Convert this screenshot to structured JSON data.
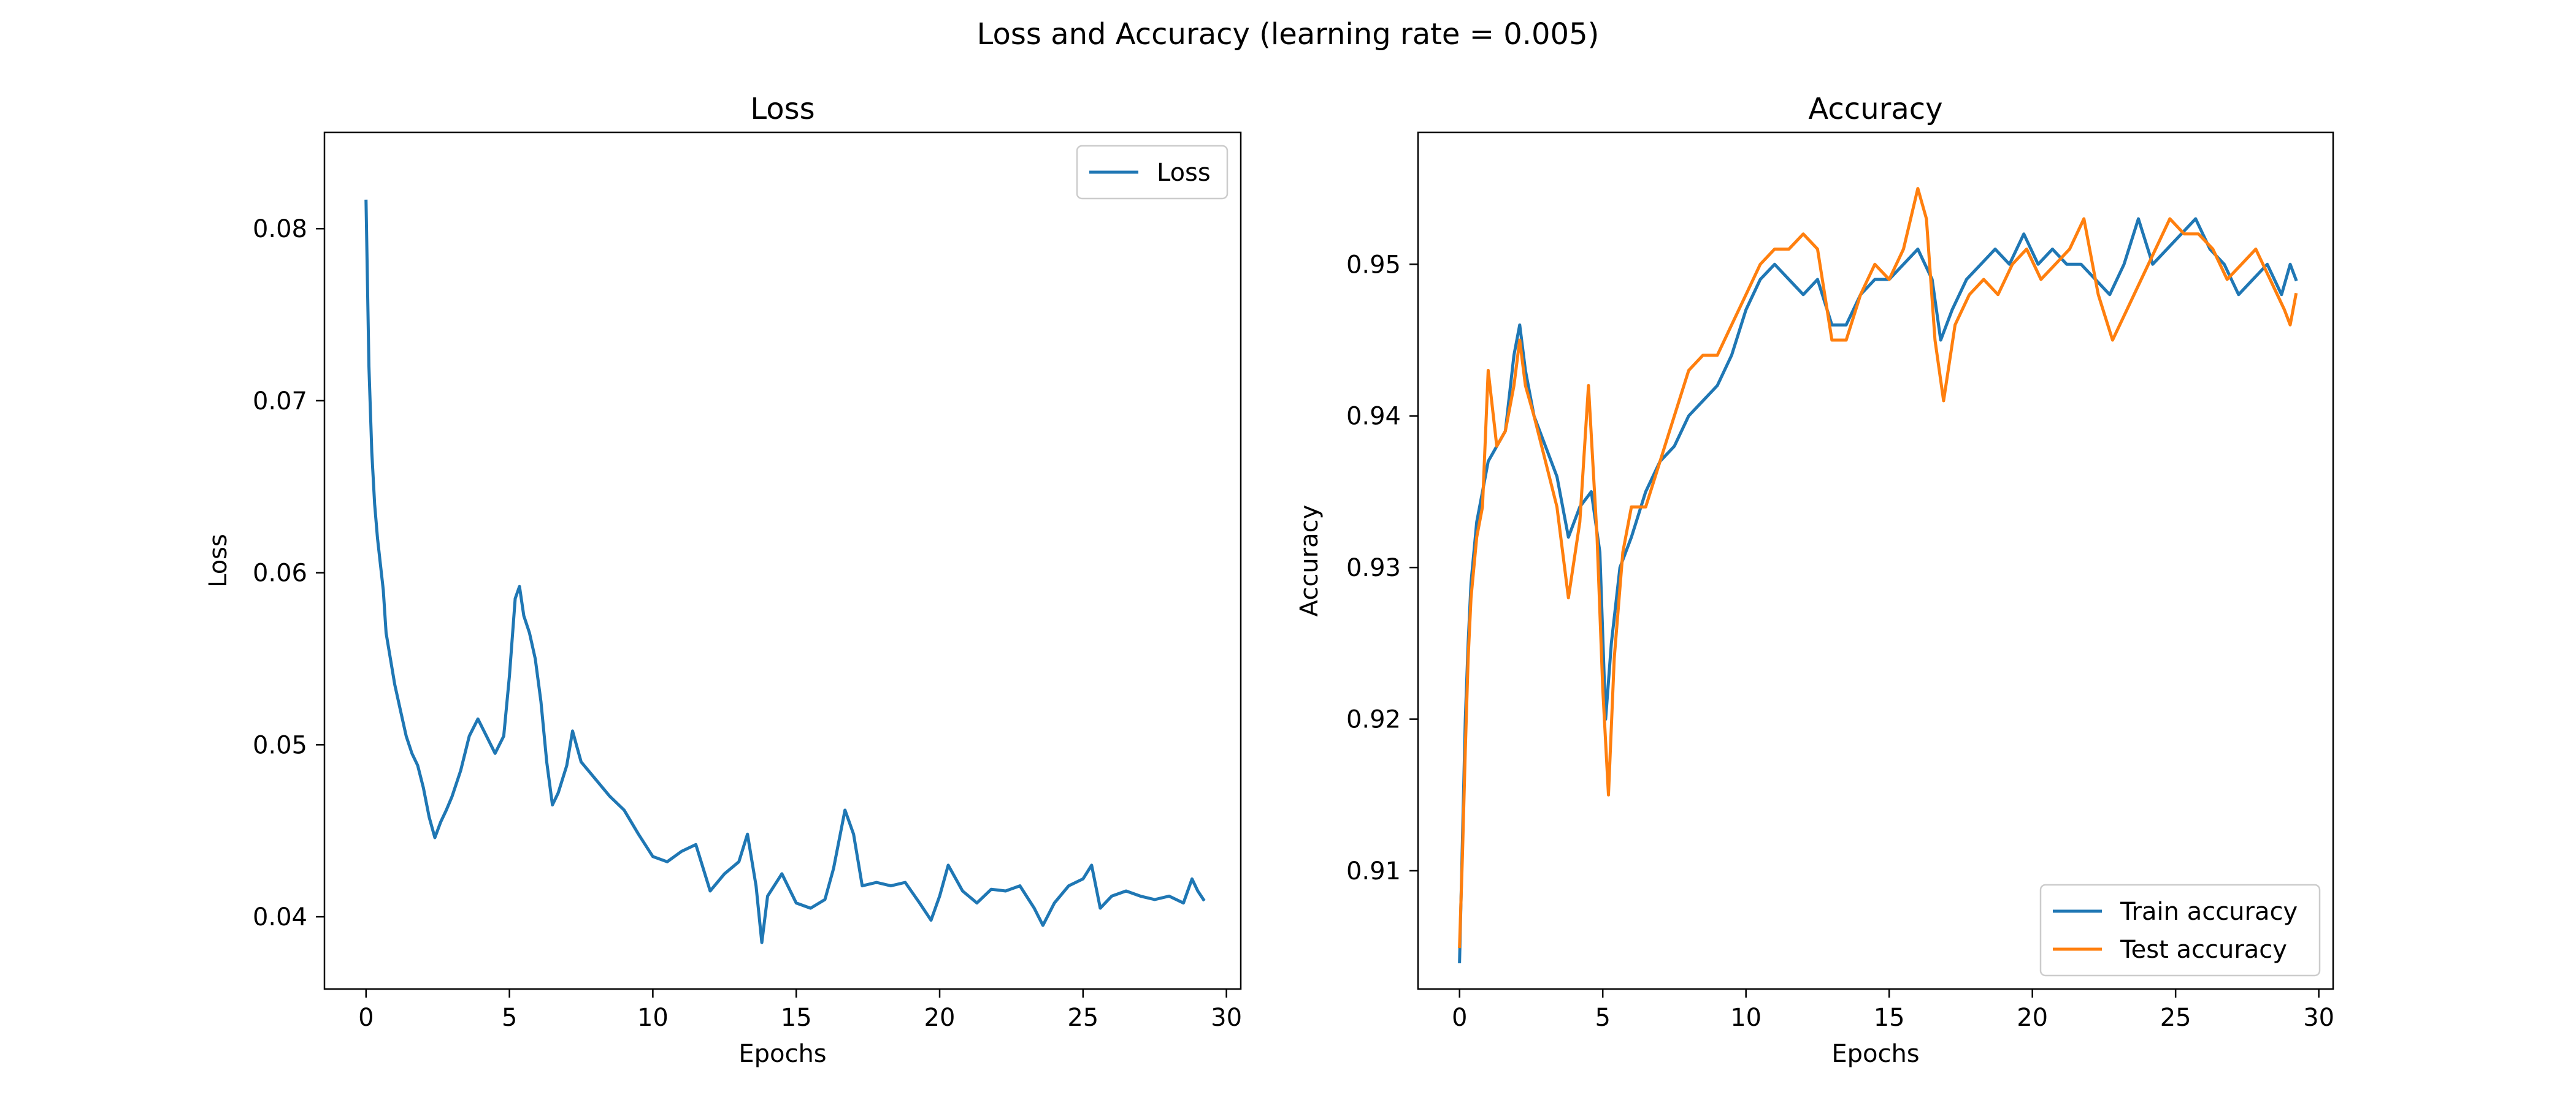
{
  "suptitle": "Loss and Accuracy (learning rate = 0.005)",
  "chart_data": [
    {
      "type": "line",
      "title": "Loss",
      "xlabel": "Epochs",
      "ylabel": "Loss",
      "xlim": [
        -1.45,
        30.5
      ],
      "ylim": [
        0.0358,
        0.0856
      ],
      "xticks": [
        0,
        5,
        10,
        15,
        20,
        25,
        30
      ],
      "yticks": [
        0.04,
        0.05,
        0.06,
        0.07,
        0.08
      ],
      "legend": "upper-right",
      "series": [
        {
          "name": "Loss",
          "color": "#1f77b4",
          "points": [
            [
              0.0,
              0.0816
            ],
            [
              0.1,
              0.072
            ],
            [
              0.2,
              0.067
            ],
            [
              0.3,
              0.064
            ],
            [
              0.4,
              0.062
            ],
            [
              0.5,
              0.0605
            ],
            [
              0.6,
              0.059
            ],
            [
              0.7,
              0.0565
            ],
            [
              0.8,
              0.0555
            ],
            [
              1.0,
              0.0535
            ],
            [
              1.2,
              0.052
            ],
            [
              1.4,
              0.0505
            ],
            [
              1.6,
              0.0495
            ],
            [
              1.8,
              0.0488
            ],
            [
              2.0,
              0.0475
            ],
            [
              2.2,
              0.0458
            ],
            [
              2.4,
              0.0446
            ],
            [
              2.6,
              0.0455
            ],
            [
              2.8,
              0.0462
            ],
            [
              3.0,
              0.047
            ],
            [
              3.3,
              0.0485
            ],
            [
              3.6,
              0.0505
            ],
            [
              3.9,
              0.0515
            ],
            [
              4.2,
              0.0505
            ],
            [
              4.5,
              0.0495
            ],
            [
              4.8,
              0.0505
            ],
            [
              5.0,
              0.054
            ],
            [
              5.2,
              0.0585
            ],
            [
              5.35,
              0.0592
            ],
            [
              5.5,
              0.0575
            ],
            [
              5.7,
              0.0565
            ],
            [
              5.9,
              0.055
            ],
            [
              6.1,
              0.0525
            ],
            [
              6.3,
              0.049
            ],
            [
              6.5,
              0.0465
            ],
            [
              6.7,
              0.0472
            ],
            [
              7.0,
              0.0488
            ],
            [
              7.2,
              0.0508
            ],
            [
              7.5,
              0.049
            ],
            [
              8.0,
              0.048
            ],
            [
              8.5,
              0.047
            ],
            [
              9.0,
              0.0462
            ],
            [
              9.5,
              0.0448
            ],
            [
              10.0,
              0.0435
            ],
            [
              10.5,
              0.0432
            ],
            [
              11.0,
              0.0438
            ],
            [
              11.5,
              0.0442
            ],
            [
              12.0,
              0.0415
            ],
            [
              12.5,
              0.0425
            ],
            [
              13.0,
              0.0432
            ],
            [
              13.3,
              0.0448
            ],
            [
              13.6,
              0.0418
            ],
            [
              13.8,
              0.0385
            ],
            [
              14.0,
              0.0412
            ],
            [
              14.5,
              0.0425
            ],
            [
              15.0,
              0.0408
            ],
            [
              15.5,
              0.0405
            ],
            [
              16.0,
              0.041
            ],
            [
              16.3,
              0.0428
            ],
            [
              16.7,
              0.0462
            ],
            [
              17.0,
              0.0448
            ],
            [
              17.3,
              0.0418
            ],
            [
              17.8,
              0.042
            ],
            [
              18.3,
              0.0418
            ],
            [
              18.8,
              0.042
            ],
            [
              19.3,
              0.0408
            ],
            [
              19.7,
              0.0398
            ],
            [
              20.0,
              0.0412
            ],
            [
              20.3,
              0.043
            ],
            [
              20.8,
              0.0415
            ],
            [
              21.3,
              0.0408
            ],
            [
              21.8,
              0.0416
            ],
            [
              22.3,
              0.0415
            ],
            [
              22.8,
              0.0418
            ],
            [
              23.3,
              0.0405
            ],
            [
              23.6,
              0.0395
            ],
            [
              24.0,
              0.0408
            ],
            [
              24.5,
              0.0418
            ],
            [
              25.0,
              0.0422
            ],
            [
              25.3,
              0.043
            ],
            [
              25.6,
              0.0405
            ],
            [
              26.0,
              0.0412
            ],
            [
              26.5,
              0.0415
            ],
            [
              27.0,
              0.0412
            ],
            [
              27.5,
              0.041
            ],
            [
              28.0,
              0.0412
            ],
            [
              28.5,
              0.0408
            ],
            [
              28.8,
              0.0422
            ],
            [
              29.0,
              0.0415
            ],
            [
              29.2,
              0.041
            ]
          ]
        }
      ]
    },
    {
      "type": "line",
      "title": "Accuracy",
      "xlabel": "Epochs",
      "ylabel": "Accuracy",
      "xlim": [
        -1.45,
        30.5
      ],
      "ylim": [
        0.9022,
        0.9587
      ],
      "xticks": [
        0,
        5,
        10,
        15,
        20,
        25,
        30
      ],
      "yticks": [
        0.91,
        0.92,
        0.93,
        0.94,
        0.95
      ],
      "legend": "lower-right",
      "series": [
        {
          "name": "Train accuracy",
          "color": "#1f77b4",
          "points": [
            [
              0.0,
              0.904
            ],
            [
              0.1,
              0.912
            ],
            [
              0.2,
              0.92
            ],
            [
              0.3,
              0.925
            ],
            [
              0.4,
              0.929
            ],
            [
              0.6,
              0.933
            ],
            [
              0.8,
              0.935
            ],
            [
              1.0,
              0.937
            ],
            [
              1.3,
              0.938
            ],
            [
              1.6,
              0.939
            ],
            [
              1.9,
              0.944
            ],
            [
              2.1,
              0.946
            ],
            [
              2.3,
              0.943
            ],
            [
              2.6,
              0.94
            ],
            [
              3.0,
              0.938
            ],
            [
              3.4,
              0.936
            ],
            [
              3.8,
              0.932
            ],
            [
              4.2,
              0.934
            ],
            [
              4.6,
              0.935
            ],
            [
              4.9,
              0.931
            ],
            [
              5.1,
              0.92
            ],
            [
              5.3,
              0.925
            ],
            [
              5.6,
              0.93
            ],
            [
              6.0,
              0.932
            ],
            [
              6.5,
              0.935
            ],
            [
              7.0,
              0.937
            ],
            [
              7.5,
              0.938
            ],
            [
              8.0,
              0.94
            ],
            [
              8.5,
              0.941
            ],
            [
              9.0,
              0.942
            ],
            [
              9.5,
              0.944
            ],
            [
              10.0,
              0.947
            ],
            [
              10.5,
              0.949
            ],
            [
              11.0,
              0.95
            ],
            [
              11.5,
              0.949
            ],
            [
              12.0,
              0.948
            ],
            [
              12.5,
              0.949
            ],
            [
              13.0,
              0.946
            ],
            [
              13.5,
              0.946
            ],
            [
              14.0,
              0.948
            ],
            [
              14.5,
              0.949
            ],
            [
              15.0,
              0.949
            ],
            [
              15.5,
              0.95
            ],
            [
              16.0,
              0.951
            ],
            [
              16.5,
              0.949
            ],
            [
              16.8,
              0.945
            ],
            [
              17.2,
              0.947
            ],
            [
              17.7,
              0.949
            ],
            [
              18.2,
              0.95
            ],
            [
              18.7,
              0.951
            ],
            [
              19.2,
              0.95
            ],
            [
              19.7,
              0.952
            ],
            [
              20.2,
              0.95
            ],
            [
              20.7,
              0.951
            ],
            [
              21.2,
              0.95
            ],
            [
              21.7,
              0.95
            ],
            [
              22.2,
              0.949
            ],
            [
              22.7,
              0.948
            ],
            [
              23.2,
              0.95
            ],
            [
              23.7,
              0.953
            ],
            [
              24.2,
              0.95
            ],
            [
              24.7,
              0.951
            ],
            [
              25.2,
              0.952
            ],
            [
              25.7,
              0.953
            ],
            [
              26.2,
              0.951
            ],
            [
              26.7,
              0.95
            ],
            [
              27.2,
              0.948
            ],
            [
              27.7,
              0.949
            ],
            [
              28.2,
              0.95
            ],
            [
              28.7,
              0.948
            ],
            [
              29.0,
              0.95
            ],
            [
              29.2,
              0.949
            ]
          ]
        },
        {
          "name": "Test accuracy",
          "color": "#ff7f0e",
          "points": [
            [
              0.0,
              0.905
            ],
            [
              0.1,
              0.911
            ],
            [
              0.2,
              0.918
            ],
            [
              0.3,
              0.924
            ],
            [
              0.4,
              0.928
            ],
            [
              0.6,
              0.932
            ],
            [
              0.8,
              0.934
            ],
            [
              1.0,
              0.943
            ],
            [
              1.3,
              0.938
            ],
            [
              1.6,
              0.939
            ],
            [
              1.9,
              0.942
            ],
            [
              2.1,
              0.945
            ],
            [
              2.3,
              0.942
            ],
            [
              2.6,
              0.94
            ],
            [
              3.0,
              0.937
            ],
            [
              3.4,
              0.934
            ],
            [
              3.8,
              0.928
            ],
            [
              4.2,
              0.933
            ],
            [
              4.5,
              0.942
            ],
            [
              4.8,
              0.932
            ],
            [
              5.0,
              0.922
            ],
            [
              5.2,
              0.915
            ],
            [
              5.4,
              0.924
            ],
            [
              5.7,
              0.931
            ],
            [
              6.0,
              0.934
            ],
            [
              6.5,
              0.934
            ],
            [
              7.0,
              0.937
            ],
            [
              7.5,
              0.94
            ],
            [
              8.0,
              0.943
            ],
            [
              8.5,
              0.944
            ],
            [
              9.0,
              0.944
            ],
            [
              9.5,
              0.946
            ],
            [
              10.0,
              0.948
            ],
            [
              10.5,
              0.95
            ],
            [
              11.0,
              0.951
            ],
            [
              11.5,
              0.951
            ],
            [
              12.0,
              0.952
            ],
            [
              12.5,
              0.951
            ],
            [
              13.0,
              0.945
            ],
            [
              13.5,
              0.945
            ],
            [
              14.0,
              0.948
            ],
            [
              14.5,
              0.95
            ],
            [
              15.0,
              0.949
            ],
            [
              15.5,
              0.951
            ],
            [
              16.0,
              0.955
            ],
            [
              16.3,
              0.953
            ],
            [
              16.6,
              0.945
            ],
            [
              16.9,
              0.941
            ],
            [
              17.3,
              0.946
            ],
            [
              17.8,
              0.948
            ],
            [
              18.3,
              0.949
            ],
            [
              18.8,
              0.948
            ],
            [
              19.3,
              0.95
            ],
            [
              19.8,
              0.951
            ],
            [
              20.3,
              0.949
            ],
            [
              20.8,
              0.95
            ],
            [
              21.3,
              0.951
            ],
            [
              21.8,
              0.953
            ],
            [
              22.3,
              0.948
            ],
            [
              22.8,
              0.945
            ],
            [
              23.3,
              0.947
            ],
            [
              23.8,
              0.949
            ],
            [
              24.3,
              0.951
            ],
            [
              24.8,
              0.953
            ],
            [
              25.3,
              0.952
            ],
            [
              25.8,
              0.952
            ],
            [
              26.3,
              0.951
            ],
            [
              26.8,
              0.949
            ],
            [
              27.3,
              0.95
            ],
            [
              27.8,
              0.951
            ],
            [
              28.3,
              0.949
            ],
            [
              28.8,
              0.947
            ],
            [
              29.0,
              0.946
            ],
            [
              29.2,
              0.948
            ]
          ]
        }
      ]
    }
  ]
}
